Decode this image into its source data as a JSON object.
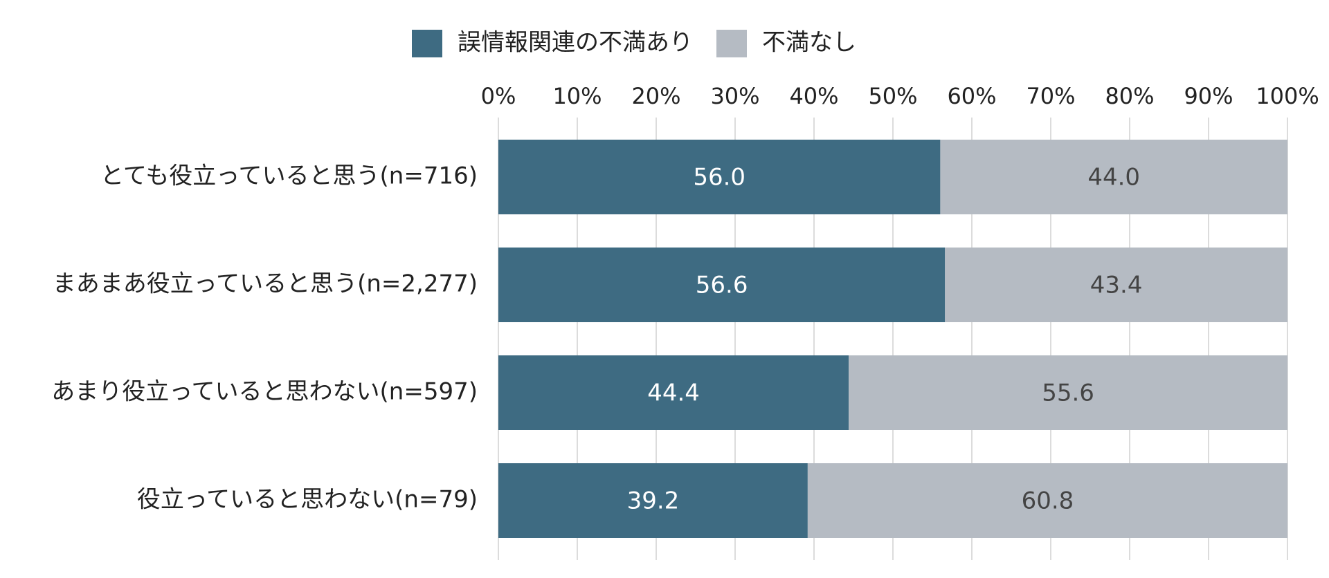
{
  "chart_data": {
    "type": "stacked-bar-horizontal",
    "categories": [
      "とても役立っていると思う(n=716)",
      "まあまあ役立っていると思う(n=2,277)",
      "あまり役立っていると思わない(n=597)",
      "役立っていると思わない(n=79)"
    ],
    "series": [
      {
        "name": "誤情報関連の不満あり",
        "color": "#3e6b82",
        "values": [
          56.0,
          56.6,
          44.4,
          39.2
        ],
        "value_labels": [
          "56.0",
          "56.6",
          "44.4",
          "39.2"
        ]
      },
      {
        "name": "不満なし",
        "color": "#b5bbc3",
        "values": [
          44.0,
          43.4,
          55.6,
          60.8
        ],
        "value_labels": [
          "44.0",
          "43.4",
          "55.6",
          "60.8"
        ]
      }
    ],
    "xlim": [
      0,
      100
    ],
    "xticks": [
      {
        "value": 0,
        "label": "0%"
      },
      {
        "value": 10,
        "label": "10%"
      },
      {
        "value": 20,
        "label": "20%"
      },
      {
        "value": 30,
        "label": "30%"
      },
      {
        "value": 40,
        "label": "40%"
      },
      {
        "value": 50,
        "label": "50%"
      },
      {
        "value": 60,
        "label": "60%"
      },
      {
        "value": 70,
        "label": "70%"
      },
      {
        "value": 80,
        "label": "80%"
      },
      {
        "value": 90,
        "label": "90%"
      },
      {
        "value": 100,
        "label": "100%"
      }
    ],
    "grid": true,
    "legend": "top"
  }
}
